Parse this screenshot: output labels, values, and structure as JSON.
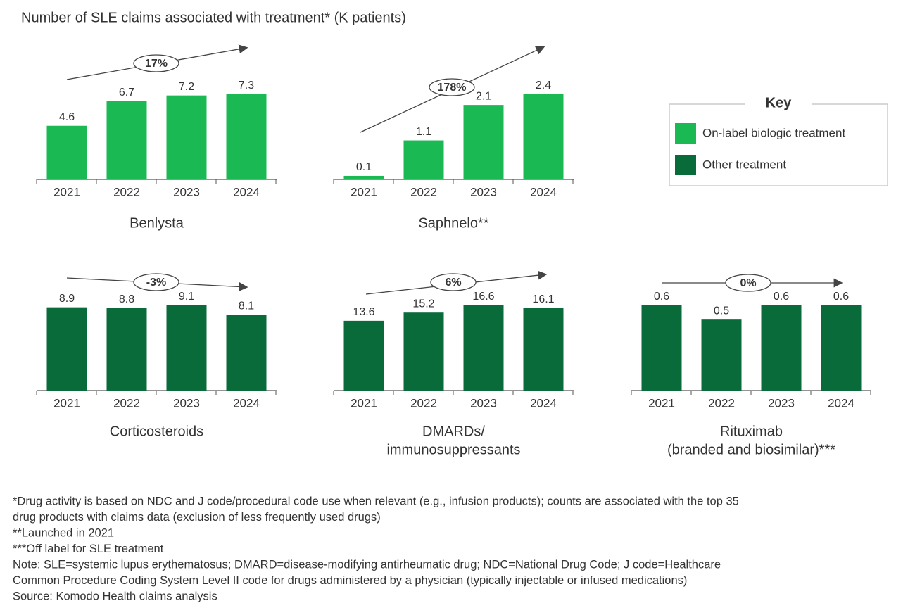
{
  "title": "Number of SLE claims associated with treatment* (K patients)",
  "legend": {
    "title": "Key"
  },
  "chart_data": [
    {
      "type": "bar",
      "name": [
        "Benlysta"
      ],
      "annotation": "17%",
      "categories": [
        "2021",
        "2022",
        "2023",
        "2024"
      ],
      "series": [
        {
          "name": "On-label biologic treatment",
          "color": "#1bb954",
          "values": [
            4.6,
            6.7,
            7.2,
            7.3
          ]
        }
      ]
    },
    {
      "type": "bar",
      "name": [
        "Saphnelo**"
      ],
      "annotation": "178%",
      "categories": [
        "2021",
        "2022",
        "2023",
        "2024"
      ],
      "series": [
        {
          "name": "On-label biologic treatment",
          "color": "#1bb954",
          "values": [
            0.1,
            1.1,
            2.1,
            2.4
          ]
        }
      ]
    },
    {
      "type": "bar",
      "name": [
        "Corticosteroids"
      ],
      "annotation": "-3%",
      "categories": [
        "2021",
        "2022",
        "2023",
        "2024"
      ],
      "series": [
        {
          "name": "Other treatment",
          "color": "#096b3a",
          "values": [
            8.9,
            8.8,
            9.1,
            8.1
          ]
        }
      ]
    },
    {
      "type": "bar",
      "name": [
        "DMARDs/",
        "immunosuppressants"
      ],
      "annotation": "6%",
      "categories": [
        "2021",
        "2022",
        "2023",
        "2024"
      ],
      "series": [
        {
          "name": "Other treatment",
          "color": "#096b3a",
          "values": [
            13.6,
            15.2,
            16.6,
            16.1
          ]
        }
      ]
    },
    {
      "type": "bar",
      "name": [
        "Rituximab",
        "(branded and biosimilar)***"
      ],
      "annotation": "0%",
      "categories": [
        "2021",
        "2022",
        "2023",
        "2024"
      ],
      "series": [
        {
          "name": "Other treatment",
          "color": "#096b3a",
          "values": [
            0.6,
            0.5,
            0.6,
            0.6
          ]
        }
      ]
    }
  ],
  "footnotes": [
    "*Drug activity is based on NDC and J code/procedural code use when relevant (e.g., infusion products); counts are associated with the top 35",
    "drug products with claims data (exclusion of less frequently used drugs)",
    "**Launched in 2021",
    "***Off label for SLE treatment",
    "Note: SLE=systemic lupus erythematosus; DMARD=disease-modifying antirheumatic drug; NDC=National Drug Code; J code=Healthcare",
    "Common Procedure Coding System Level II code for drugs administered by a physician (typically injectable or infused medications)",
    "Source: Komodo Health claims analysis"
  ]
}
